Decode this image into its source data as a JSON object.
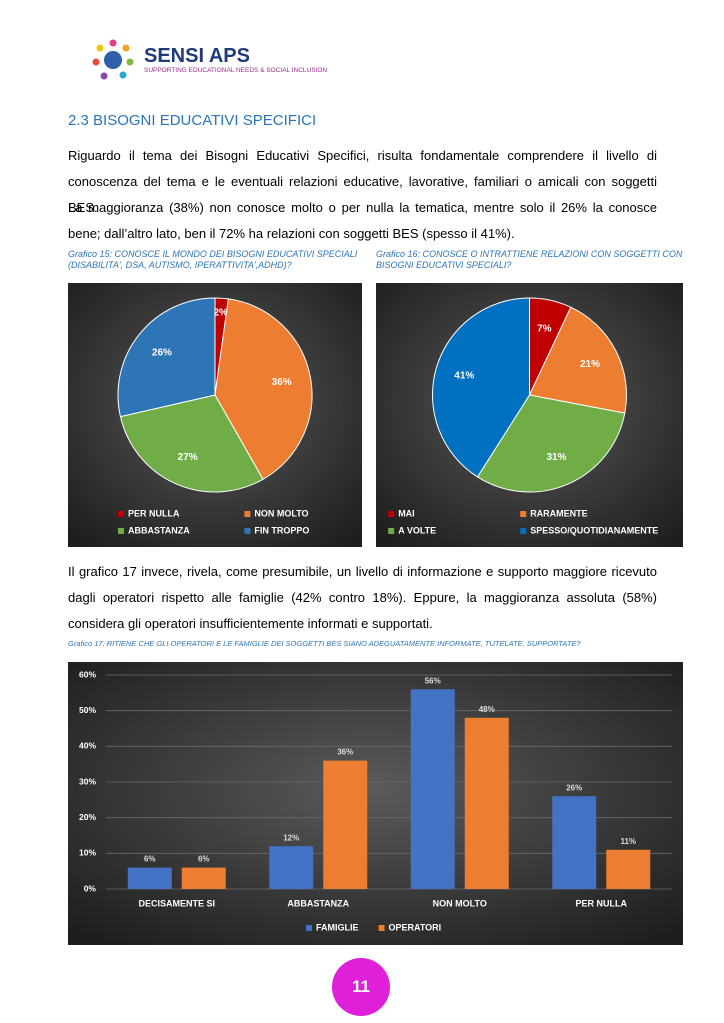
{
  "header": {
    "brand": "SENSI APS",
    "tagline": "SUPPORTING EDUCATIONAL NEEDS & SOCIAL INCLUSION"
  },
  "section_title": "2.3 BISOGNI EDUCATIVI SPECIFICI",
  "paragraphs": [
    "Riguardo il tema dei Bisogni Educativi Specifici, risulta fondamentale comprendere il livello di conoscenza del tema e le eventuali relazioni educative, lavorative, familiari o amicali con soggetti BES.",
    "La maggioranza (38%) non conosce molto o per nulla la tematica, mentre solo il 26% la conosce bene; dall’altro lato, ben il 72% ha relazioni con soggetti BES (spesso il 41%).",
    "Il grafico 17 invece, rivela, come presumibile, un livello di informazione e supporto maggiore ricevuto dagli operatori rispetto alle famiglie (42% contro 18%). Eppure, la maggioranza assoluta (58%) considera gli operatori insufficientemente informati e supportati."
  ],
  "chart_data": [
    {
      "type": "pie",
      "title": "Grafico 15: CONOSCE IL MONDO DEI BISOGNI EDUCATIVI SPECIALI (DISABILITA', DSA, AUTISMO, IPERATTIVITA',ADHD)?",
      "categories": [
        "PER NULLA",
        "NON MOLTO",
        "ABBASTANZA",
        "FIN TROPPO"
      ],
      "values": [
        2,
        36,
        27,
        26
      ],
      "value_labels": [
        "2%",
        "36%",
        "27%",
        "26%"
      ],
      "colors": [
        "#c00000",
        "#ed7d31",
        "#70ad47",
        "#2e75b6"
      ]
    },
    {
      "type": "pie",
      "title": "Grafico 16: CONOSCE O INTRATTIENE RELAZIONI CON SOGGETTI CON BISOGNI EDUCATIVI SPECIALI?",
      "categories": [
        "MAI",
        "RARAMENTE",
        "A VOLTE",
        "SPESSO/QUOTIDIANAMENTE"
      ],
      "values": [
        7,
        21,
        31,
        41
      ],
      "value_labels": [
        "7%",
        "21%",
        "31%",
        "41%"
      ],
      "colors": [
        "#c00000",
        "#ed7d31",
        "#70ad47",
        "#0070c0"
      ]
    },
    {
      "type": "bar",
      "title": "Grafico 17: RITIENE CHE GLI OPERATORI E LE FAMIGLIE DEI SOGGETTI BES SIANO ADEGUATAMENTE INFORMATE, TUTELATE, SUPPORTATE?",
      "categories": [
        "DECISAMENTE SI",
        "ABBASTANZA",
        "NON MOLTO",
        "PER NULLA"
      ],
      "series": [
        {
          "name": "FAMIGLIE",
          "color": "#4472c4",
          "values": [
            6,
            12,
            56,
            26
          ],
          "value_labels": [
            "6%",
            "12%",
            "56%",
            "26%"
          ]
        },
        {
          "name": "OPERATORI",
          "color": "#ed7d31",
          "values": [
            6,
            36,
            48,
            11
          ],
          "value_labels": [
            "6%",
            "36%",
            "48%",
            "11%"
          ]
        }
      ],
      "ylim": [
        0,
        60
      ],
      "yticks": [
        {
          "value": 0,
          "label": "0%"
        },
        {
          "value": 10,
          "label": "10%"
        },
        {
          "value": 20,
          "label": "20%"
        },
        {
          "value": 30,
          "label": "30%"
        },
        {
          "value": 40,
          "label": "40%"
        },
        {
          "value": 50,
          "label": "50%"
        },
        {
          "value": 60,
          "label": "60%"
        }
      ],
      "grid": true,
      "legend": "bottom"
    }
  ],
  "page_number": "11"
}
